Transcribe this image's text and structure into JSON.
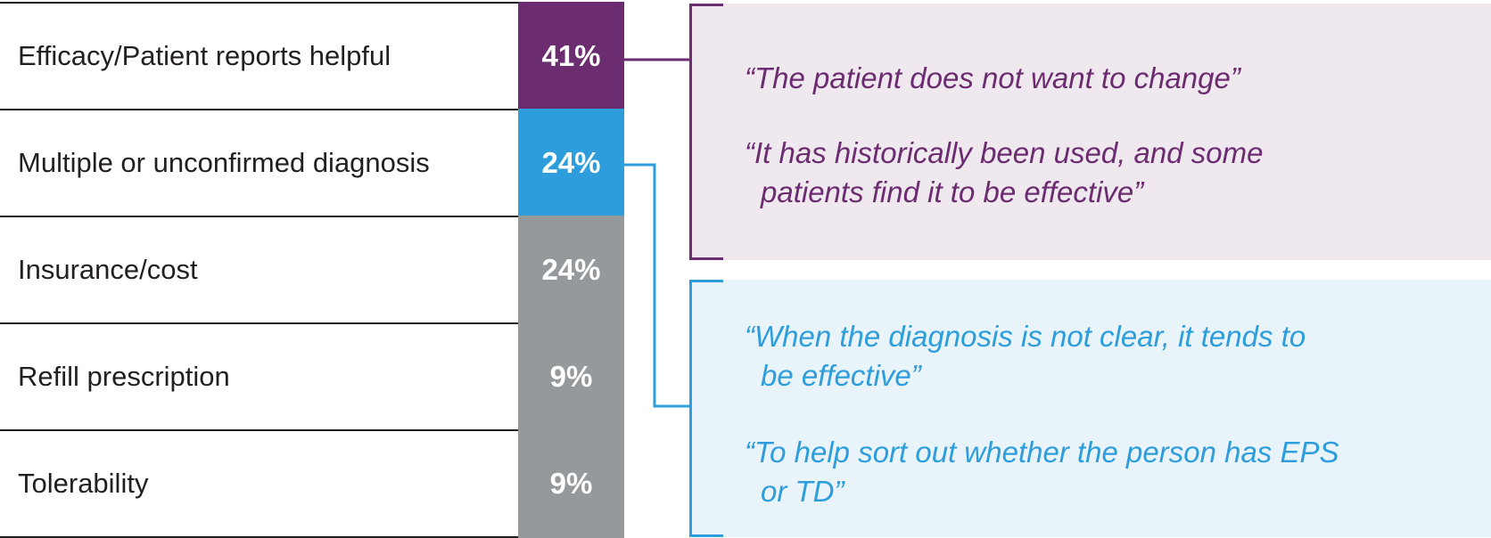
{
  "chart_data": {
    "type": "table",
    "categories": [
      "Efficacy/Patient reports helpful",
      "Multiple or unconfirmed diagnosis",
      "Insurance/cost",
      "Refill prescription",
      "Tolerability"
    ],
    "values": [
      41,
      24,
      24,
      9,
      9
    ],
    "value_labels": [
      "41%",
      "24%",
      "24%",
      "9%",
      "9%"
    ],
    "unit": "%",
    "bar_colors": [
      "#6b2c70",
      "#2e9ddb",
      "#96999c",
      "#96999c",
      "#96999c"
    ]
  },
  "quotes": [
    {
      "linked_category": "Efficacy/Patient reports helpful",
      "color": "#6b2c70",
      "background": "#efe8ef",
      "items": [
        {
          "lines": [
            "“The patient does not want to change”"
          ]
        },
        {
          "lines": [
            "“It has historically been used, and some",
            "patients find it to be effective”"
          ]
        }
      ]
    },
    {
      "linked_category": "Multiple or unconfirmed diagnosis",
      "color": "#2e9ddb",
      "background": "#e8f3fa",
      "items": [
        {
          "lines": [
            "“When the diagnosis is not clear, it tends to",
            "be effective”"
          ]
        },
        {
          "lines": [
            "“To help sort out whether the person has EPS",
            "or TD”"
          ]
        }
      ]
    }
  ]
}
